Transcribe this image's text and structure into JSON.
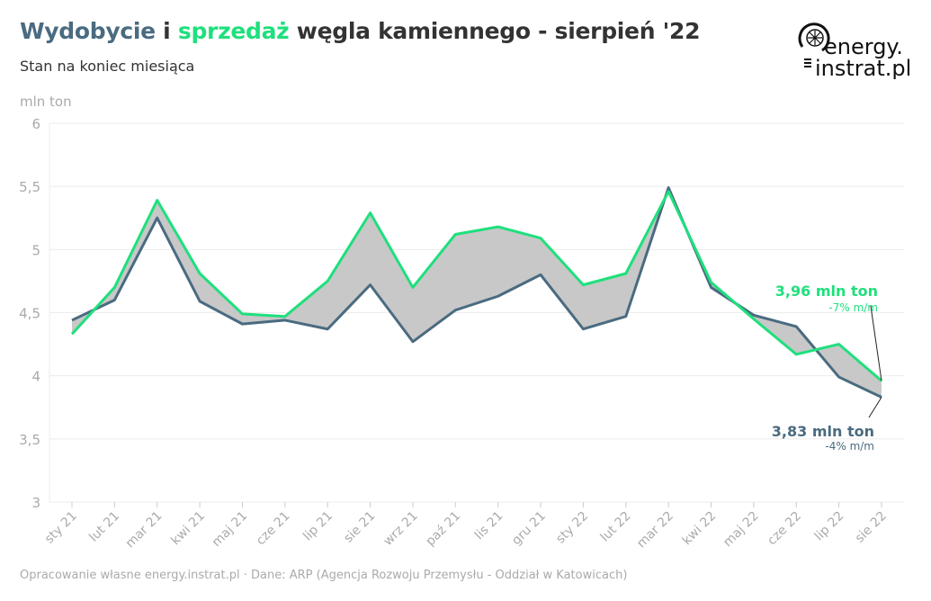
{
  "title": {
    "part1": "Wydobycie",
    "part2": " i ",
    "part3": "sprzedaż",
    "part4": " węgla kamiennego - sierpień '22"
  },
  "subtitle": "Stan na koniec miesiąca",
  "footer": "Opracowanie własne energy.instrat.pl · Dane: ARP (Agencja Rozwoju Przemysłu - Oddział w Katowicach)",
  "logo": {
    "line1": "energy.",
    "line2": "instrat.pl"
  },
  "colors": {
    "wydobycie": "#4a6b80",
    "sprzedaz": "#1ee07c",
    "fill": "#c8c8c8"
  },
  "chart_data": {
    "type": "line",
    "ylabel": "mln ton",
    "ylim": [
      3,
      6
    ],
    "yticks": [
      "3",
      "3,5",
      "4",
      "4,5",
      "5",
      "5,5",
      "6"
    ],
    "grid": true,
    "categories": [
      "sty 21",
      "lut 21",
      "mar 21",
      "kwi 21",
      "maj 21",
      "cze 21",
      "lip 21",
      "sie 21",
      "wrz 21",
      "paź 21",
      "lis 21",
      "gru 21",
      "sty 22",
      "lut 22",
      "mar 22",
      "kwi 22",
      "maj 22",
      "cze 22",
      "lip 22",
      "sie 22"
    ],
    "series": [
      {
        "name": "Wydobycie",
        "values": [
          4.44,
          4.6,
          5.25,
          4.59,
          4.41,
          4.44,
          4.37,
          4.72,
          4.27,
          4.52,
          4.63,
          4.8,
          4.37,
          4.47,
          5.49,
          4.7,
          4.48,
          4.39,
          3.99,
          3.83
        ]
      },
      {
        "name": "sprzedaż",
        "values": [
          4.33,
          4.7,
          5.39,
          4.81,
          4.49,
          4.47,
          4.75,
          5.29,
          4.7,
          5.12,
          5.18,
          5.09,
          4.72,
          4.81,
          5.46,
          4.74,
          4.45,
          4.17,
          4.25,
          3.96
        ]
      }
    ],
    "annotations": [
      {
        "series": "sprzedaż",
        "label": "3,96 mln ton",
        "sub": "-7% m/m"
      },
      {
        "series": "Wydobycie",
        "label": "3,83 mln ton",
        "sub": "-4% m/m"
      }
    ]
  }
}
